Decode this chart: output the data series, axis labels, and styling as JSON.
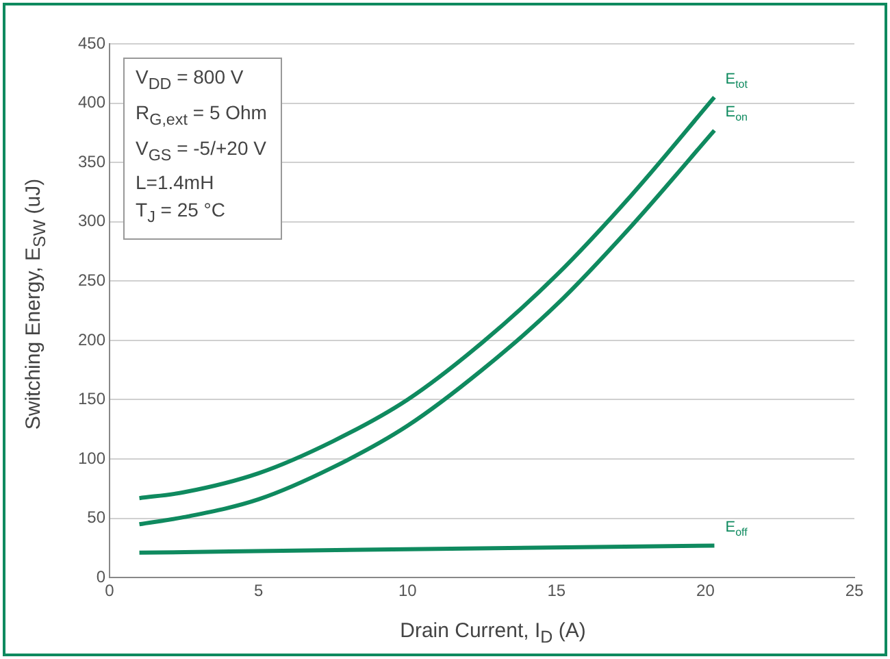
{
  "chart_data": {
    "type": "line",
    "xlabel": "Drain Current, I$_{D}$ (A)",
    "ylabel": "Switching Energy, E$_{SW}$ (uJ)",
    "annotations": [
      "V$_{DD}$ = 800 V",
      "R$_{G,ext}$ = 5 Ohm",
      "V$_{GS}$ = -5/+20 V",
      "L=1.4mH",
      "T$_{J}$ = 25 °C"
    ],
    "series": [
      {
        "name": "E$_{tot}$",
        "color": "#0f8a5f",
        "x": [
          1,
          2.5,
          5,
          7.5,
          10,
          12.5,
          15,
          17.5,
          20.3
        ],
        "values": [
          67,
          72,
          88,
          115,
          150,
          198,
          255,
          322,
          405
        ]
      },
      {
        "name": "E$_{on}$",
        "color": "#0f8a5f",
        "x": [
          1,
          2.5,
          5,
          7.5,
          10,
          12.5,
          15,
          17.5,
          20.3
        ],
        "values": [
          45,
          51,
          66,
          93,
          128,
          175,
          230,
          296,
          377
        ]
      },
      {
        "name": "E$_{off}$",
        "color": "#0f8a5f",
        "x": [
          1,
          10,
          20.3
        ],
        "values": [
          21,
          24,
          27
        ]
      }
    ],
    "xlim": [
      0,
      25
    ],
    "xticks": [
      0,
      5,
      10,
      15,
      20,
      25
    ],
    "ylim": [
      0,
      450
    ],
    "yticks": [
      0,
      50,
      100,
      150,
      200,
      250,
      300,
      350,
      400,
      450
    ],
    "grid": "y",
    "legend": false,
    "marker": "none",
    "line_style": "solid"
  }
}
